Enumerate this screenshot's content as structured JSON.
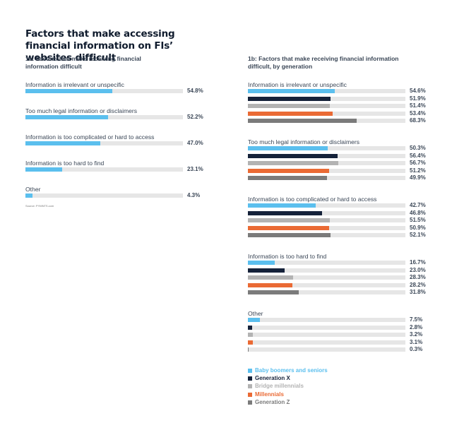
{
  "title": "Factors that make accessing financial information on FIs’ websites difficult",
  "colors": {
    "baby_boomers": "#5bbfee",
    "gen_x": "#15223a",
    "bridge": "#b3b3b3",
    "millennials": "#ea6a34",
    "gen_z": "#7b7b7b",
    "overall": "#5bbfee",
    "track": "#e6e6e6"
  },
  "source": "Source: PYMNTS.com",
  "chart_data": [
    {
      "type": "bar",
      "orientation": "horizontal",
      "title": "1a: Factors that make receiving financial information difficult",
      "categories": [
        "Information is irrelevant or unspecific",
        "Too much legal information or disclaimers",
        "Information is too complicated or hard to access",
        "Information is too hard to find",
        "Other"
      ],
      "values": [
        54.8,
        52.2,
        47.0,
        23.1,
        4.3
      ],
      "value_labels": [
        "54.8%",
        "52.2%",
        "47.0%",
        "23.1%",
        "4.3%"
      ],
      "xlim": [
        0,
        100
      ],
      "grid": false
    },
    {
      "type": "bar",
      "orientation": "horizontal",
      "title": "1b: Factors that make receiving financial information difficult, by generation",
      "categories": [
        "Information is irrelevant or unspecific",
        "Too much legal information or disclaimers",
        "Information is too complicated or hard to access",
        "Information is too hard to find",
        "Other"
      ],
      "series": [
        {
          "name": "Baby boomers and seniors",
          "color": "#5bbfee",
          "values": [
            54.6,
            50.3,
            42.7,
            16.7,
            7.5
          ],
          "value_labels": [
            "54.6%",
            "50.3%",
            "42.7%",
            "16.7%",
            "7.5%"
          ]
        },
        {
          "name": "Generation X",
          "color": "#15223a",
          "values": [
            51.9,
            56.4,
            46.8,
            23.0,
            2.8
          ],
          "value_labels": [
            "51.9%",
            "56.4%",
            "46.8%",
            "23.0%",
            "2.8%"
          ]
        },
        {
          "name": "Bridge millennials",
          "color": "#b3b3b3",
          "values": [
            51.4,
            56.7,
            51.5,
            28.3,
            3.2
          ],
          "value_labels": [
            "51.4%",
            "56.7%",
            "51.5%",
            "28.3%",
            "3.2%"
          ]
        },
        {
          "name": "Millennials",
          "color": "#ea6a34",
          "values": [
            53.4,
            51.2,
            50.9,
            28.2,
            3.1
          ],
          "value_labels": [
            "53.4%",
            "51.2%",
            "50.9%",
            "28.2%",
            "3.1%"
          ]
        },
        {
          "name": "Generation Z",
          "color": "#7b7b7b",
          "values": [
            68.3,
            49.9,
            52.1,
            31.8,
            0.3
          ],
          "value_labels": [
            "68.3%",
            "49.9%",
            "52.1%",
            "31.8%",
            "0.3%"
          ]
        }
      ],
      "xlim": [
        0,
        100
      ],
      "grid": false,
      "legend": "bottom-left"
    }
  ]
}
